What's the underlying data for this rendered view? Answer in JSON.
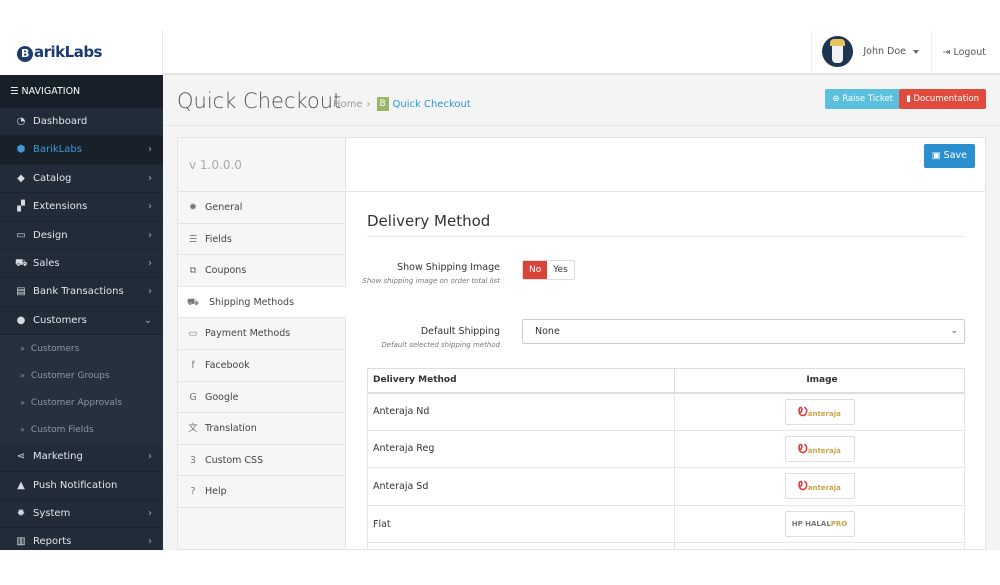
{
  "brand": {
    "logo_text": "BarikLabs"
  },
  "header": {
    "user_name": "John Doe",
    "logout": "Logout"
  },
  "sidebar": {
    "heading": "NAVIGATION",
    "items": [
      {
        "label": "Dashboard",
        "icon": "dashboard-icon"
      },
      {
        "label": "BarikLabs",
        "icon": "cube-icon",
        "active": true
      },
      {
        "label": "Catalog",
        "icon": "tags-icon"
      },
      {
        "label": "Extensions",
        "icon": "puzzle-icon"
      },
      {
        "label": "Design",
        "icon": "desktop-icon"
      },
      {
        "label": "Sales",
        "icon": "cart-icon"
      },
      {
        "label": "Bank Transactions",
        "icon": "credit-card-icon"
      },
      {
        "label": "Customers",
        "icon": "user-icon",
        "expanded": true
      }
    ],
    "subitems": [
      "Customers",
      "Customer Groups",
      "Customer Approvals",
      "Custom Fields"
    ],
    "items_after": [
      {
        "label": "Marketing",
        "icon": "share-icon"
      },
      {
        "label": "Push Notification",
        "icon": "bell-icon"
      },
      {
        "label": "System",
        "icon": "cog-icon"
      },
      {
        "label": "Reports",
        "icon": "bar-chart-icon"
      }
    ]
  },
  "page": {
    "title": "Quick Checkout",
    "breadcrumb": [
      "Home",
      "Quick Checkout"
    ],
    "raise_ticket": "Raise Ticket",
    "documentation": "Documentation"
  },
  "panel": {
    "version": "v 1.0.0.0",
    "save": "Save",
    "tabs": [
      {
        "label": "General",
        "icon": "cog-icon"
      },
      {
        "label": "Fields",
        "icon": "list-icon"
      },
      {
        "label": "Coupons",
        "icon": "ticket-icon"
      },
      {
        "label": "Shipping Methods",
        "icon": "truck-icon",
        "active": true
      },
      {
        "label": "Payment Methods",
        "icon": "credit-card-icon"
      },
      {
        "label": "Facebook",
        "icon": "facebook-icon"
      },
      {
        "label": "Google",
        "icon": "google-icon"
      },
      {
        "label": "Translation",
        "icon": "language-icon"
      },
      {
        "label": "Custom CSS",
        "icon": "css3-icon"
      },
      {
        "label": "Help",
        "icon": "question-icon"
      }
    ],
    "section_title": "Delivery Method",
    "show_image": {
      "label": "Show Shipping Image",
      "help": "Show shipping image on order total list",
      "options": [
        "No",
        "Yes"
      ],
      "selected": "No"
    },
    "default_shipping": {
      "label": "Default Shipping",
      "help": "Default selected shipping method",
      "value": "None"
    },
    "table": {
      "headers": [
        "Delivery Method",
        "Image"
      ],
      "rows": [
        {
          "method": "Anteraja Nd",
          "image": "anteraja"
        },
        {
          "method": "Anteraja Reg",
          "image": "anteraja"
        },
        {
          "method": "Anteraja Sd",
          "image": "anteraja"
        },
        {
          "method": "Flat",
          "image": "HALALPRO"
        }
      ]
    }
  },
  "colors": {
    "sidebar": "#222c38",
    "active": "#3d9ad6",
    "danger": "#d9433a",
    "info": "#5bc0de",
    "primary": "#2a8fcf"
  }
}
